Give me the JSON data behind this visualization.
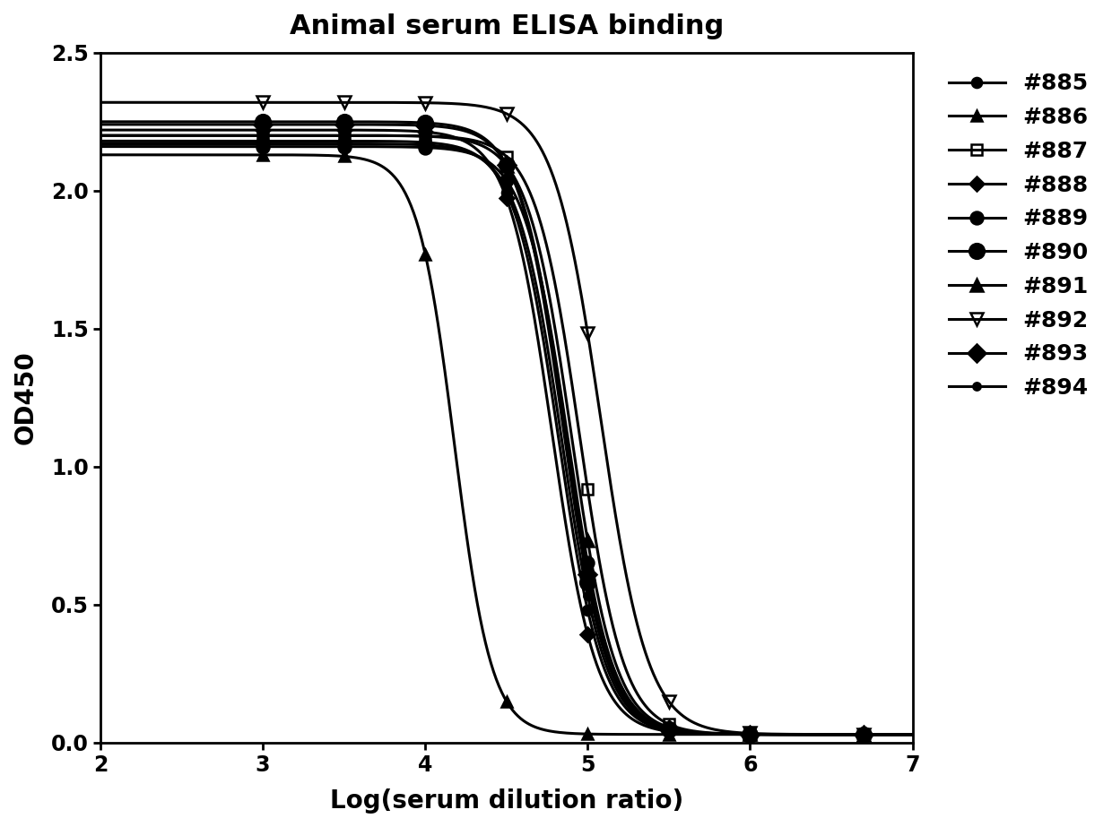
{
  "title": "Animal serum ELISA binding",
  "xlabel": "Log(serum dilution ratio)",
  "ylabel": "OD450",
  "xlim": [
    2,
    7
  ],
  "ylim": [
    0.0,
    2.5
  ],
  "xticks": [
    2,
    3,
    4,
    5,
    6,
    7
  ],
  "yticks": [
    0.0,
    0.5,
    1.0,
    1.5,
    2.0,
    2.5
  ],
  "series": [
    {
      "label": "#885",
      "color": "#000000",
      "marker": "o",
      "markersize": 8,
      "fillstyle": "full",
      "top": 2.18,
      "bottom": 0.03,
      "ec50": 4.82,
      "hill": 3.2
    },
    {
      "label": "#886",
      "color": "#000000",
      "marker": "^",
      "markersize": 9,
      "fillstyle": "full",
      "top": 2.13,
      "bottom": 0.03,
      "ec50": 4.18,
      "hill": 3.8
    },
    {
      "label": "#887",
      "color": "#000000",
      "marker": "s",
      "markersize": 9,
      "fillstyle": "none",
      "top": 2.2,
      "bottom": 0.03,
      "ec50": 4.95,
      "hill": 3.2
    },
    {
      "label": "#888",
      "color": "#000000",
      "marker": "D",
      "markersize": 8,
      "fillstyle": "full",
      "top": 2.22,
      "bottom": 0.03,
      "ec50": 4.78,
      "hill": 3.2
    },
    {
      "label": "#889",
      "color": "#000000",
      "marker": "o",
      "markersize": 10,
      "fillstyle": "full",
      "top": 2.16,
      "bottom": 0.03,
      "ec50": 4.88,
      "hill": 3.2
    },
    {
      "label": "#890",
      "color": "#000000",
      "marker": "o",
      "markersize": 12,
      "fillstyle": "full",
      "top": 2.25,
      "bottom": 0.03,
      "ec50": 4.85,
      "hill": 3.2
    },
    {
      "label": "#891",
      "color": "#000000",
      "marker": "^",
      "markersize": 10,
      "fillstyle": "full",
      "top": 2.2,
      "bottom": 0.03,
      "ec50": 4.9,
      "hill": 3.2
    },
    {
      "label": "#892",
      "color": "#000000",
      "marker": "v",
      "markersize": 10,
      "fillstyle": "none",
      "top": 2.32,
      "bottom": 0.03,
      "ec50": 5.08,
      "hill": 3.0
    },
    {
      "label": "#893",
      "color": "#000000",
      "marker": "D",
      "markersize": 10,
      "fillstyle": "full",
      "top": 2.24,
      "bottom": 0.03,
      "ec50": 4.86,
      "hill": 3.2
    },
    {
      "label": "#894",
      "color": "#000000",
      "marker": "o",
      "markersize": 6,
      "fillstyle": "full",
      "top": 2.17,
      "bottom": 0.03,
      "ec50": 4.84,
      "hill": 3.2
    }
  ],
  "background_color": "#ffffff",
  "title_fontsize": 22,
  "label_fontsize": 20,
  "tick_fontsize": 17,
  "legend_fontsize": 18,
  "linewidth": 2.2
}
